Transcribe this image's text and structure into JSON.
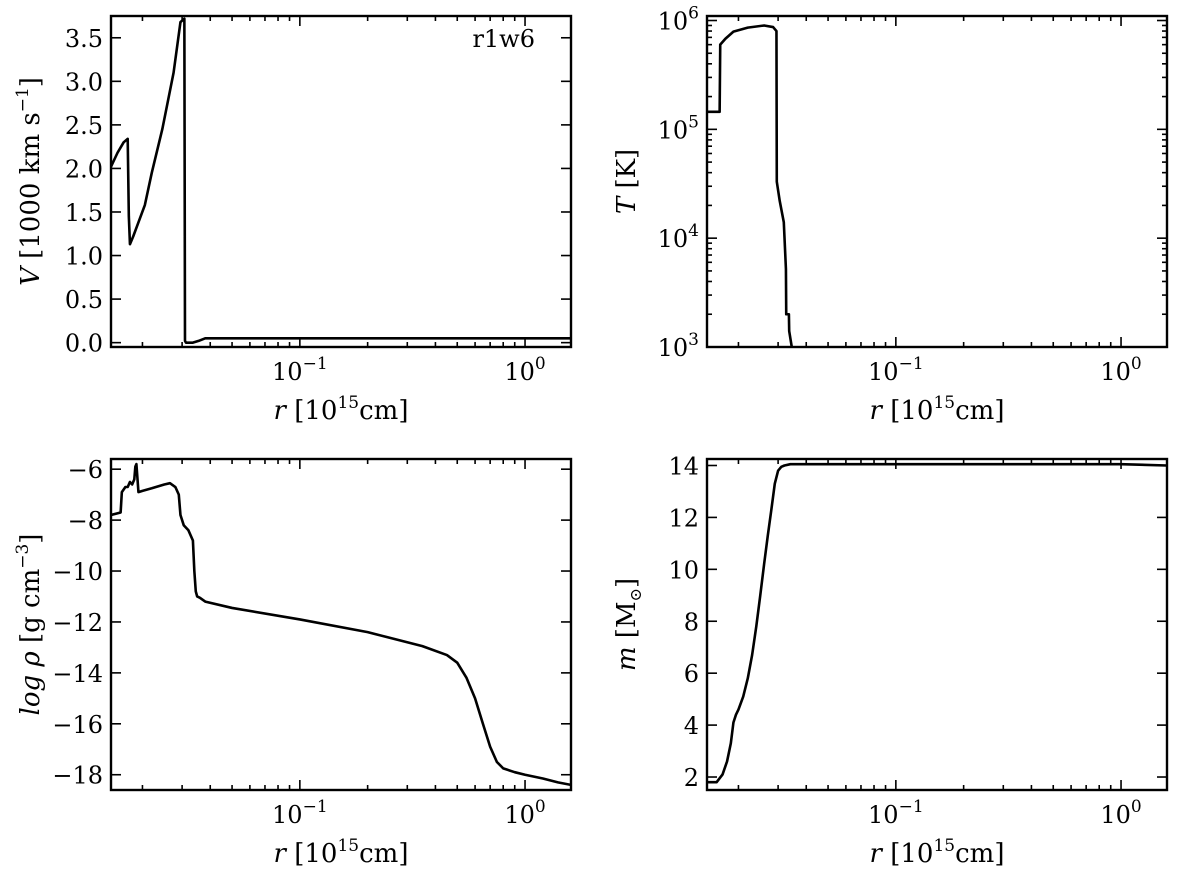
{
  "chart_data": [
    {
      "id": "velocity",
      "type": "line",
      "xscale": "log",
      "yscale": "linear",
      "xlim": [
        0.0145,
        1.6
      ],
      "ylim": [
        -0.05,
        3.75
      ],
      "xlabel": {
        "var": "r",
        "unit": "[10",
        "sup": "15",
        "unit2": "cm]"
      },
      "ylabel": {
        "var": "V",
        "unit": "[1000 km s",
        "sup": "−1",
        "unit2": "]"
      },
      "annotation": "r1w6",
      "xticks": [
        {
          "value": 0.1,
          "base": "10",
          "exp": "−1"
        },
        {
          "value": 1,
          "base": "10",
          "exp": "0"
        }
      ],
      "yticks": [
        {
          "value": 0,
          "label": "0.0"
        },
        {
          "value": 0.5,
          "label": "0.5"
        },
        {
          "value": 1,
          "label": "1.0"
        },
        {
          "value": 1.5,
          "label": "1.5"
        },
        {
          "value": 2,
          "label": "2.0"
        },
        {
          "value": 2.5,
          "label": "2.5"
        },
        {
          "value": 3,
          "label": "3.0"
        },
        {
          "value": 3.5,
          "label": "3.5"
        }
      ],
      "series": [
        {
          "x": [
            0.0145,
            0.0155,
            0.0165,
            0.0172,
            0.0174,
            0.0176,
            0.0182,
            0.019,
            0.0205,
            0.022,
            0.0245,
            0.0275,
            0.0295,
            0.0307,
            0.0309,
            0.0312,
            0.0335,
            0.0355,
            0.038,
            0.05,
            0.1,
            0.5,
            1.0,
            1.6
          ],
          "y": [
            2.02,
            2.18,
            2.3,
            2.34,
            1.45,
            1.13,
            1.22,
            1.35,
            1.58,
            1.95,
            2.45,
            3.1,
            3.68,
            3.72,
            0.02,
            0.0,
            0.0,
            0.02,
            0.05,
            0.05,
            0.05,
            0.05,
            0.05,
            0.05
          ]
        }
      ]
    },
    {
      "id": "temperature",
      "type": "line",
      "xscale": "log",
      "yscale": "log",
      "xlim": [
        0.0145,
        1.6
      ],
      "ylim": [
        1000,
        1100000
      ],
      "xlabel": {
        "var": "r",
        "unit": "[10",
        "sup": "15",
        "unit2": "cm]"
      },
      "ylabel": {
        "var": "T",
        "unit": "[K]",
        "sup": "",
        "unit2": ""
      },
      "xticks": [
        {
          "value": 0.1,
          "base": "10",
          "exp": "−1"
        },
        {
          "value": 1,
          "base": "10",
          "exp": "0"
        }
      ],
      "yticks": [
        {
          "value": 1000,
          "base": "10",
          "exp": "3"
        },
        {
          "value": 10000,
          "base": "10",
          "exp": "4"
        },
        {
          "value": 100000,
          "base": "10",
          "exp": "5"
        },
        {
          "value": 1000000,
          "base": "10",
          "exp": "6"
        }
      ],
      "series": [
        {
          "x": [
            0.0145,
            0.0165,
            0.0166,
            0.0175,
            0.019,
            0.022,
            0.026,
            0.0285,
            0.0295,
            0.0296,
            0.0305,
            0.0318,
            0.0325,
            0.0326,
            0.0335,
            0.0336,
            0.0345
          ],
          "y": [
            145000,
            145000,
            600000,
            680000,
            790000,
            860000,
            900000,
            870000,
            800000,
            33000,
            22000,
            14000,
            5200,
            2000,
            2000,
            1400,
            1000
          ]
        }
      ]
    },
    {
      "id": "density",
      "type": "line",
      "xscale": "log",
      "yscale": "linear",
      "xlim": [
        0.0145,
        1.6
      ],
      "ylim": [
        -18.6,
        -5.6
      ],
      "xlabel": {
        "var": "r",
        "unit": "[10",
        "sup": "15",
        "unit2": "cm]"
      },
      "ylabel": {
        "var": "log ρ",
        "unit": "[g cm",
        "sup": "−3",
        "unit2": "]"
      },
      "xticks": [
        {
          "value": 0.1,
          "base": "10",
          "exp": "−1"
        },
        {
          "value": 1,
          "base": "10",
          "exp": "0"
        }
      ],
      "yticks": [
        {
          "value": -6,
          "label": "−6"
        },
        {
          "value": -8,
          "label": "−8"
        },
        {
          "value": -10,
          "label": "−10"
        },
        {
          "value": -12,
          "label": "−12"
        },
        {
          "value": -14,
          "label": "−14"
        },
        {
          "value": -16,
          "label": "−16"
        },
        {
          "value": -18,
          "label": "−18"
        }
      ],
      "series": [
        {
          "x": [
            0.0145,
            0.016,
            0.0162,
            0.0168,
            0.0172,
            0.0176,
            0.018,
            0.0184,
            0.0186,
            0.0188,
            0.0192,
            0.02,
            0.022,
            0.025,
            0.0265,
            0.028,
            0.029,
            0.0295,
            0.0305,
            0.032,
            0.0335,
            0.034,
            0.0345,
            0.035,
            0.036,
            0.038,
            0.05,
            0.1,
            0.2,
            0.35,
            0.45,
            0.5,
            0.55,
            0.6,
            0.65,
            0.7,
            0.75,
            0.8,
            0.9,
            1.0,
            1.2,
            1.4,
            1.6
          ],
          "y": [
            -7.8,
            -7.7,
            -6.9,
            -6.7,
            -6.7,
            -6.5,
            -6.6,
            -6.4,
            -5.9,
            -5.8,
            -6.9,
            -6.85,
            -6.75,
            -6.6,
            -6.55,
            -6.7,
            -7.0,
            -7.8,
            -8.2,
            -8.4,
            -8.8,
            -10.0,
            -10.8,
            -11.0,
            -11.05,
            -11.2,
            -11.45,
            -11.9,
            -12.4,
            -12.95,
            -13.3,
            -13.6,
            -14.2,
            -15.0,
            -16.0,
            -16.9,
            -17.5,
            -17.75,
            -17.9,
            -18.0,
            -18.15,
            -18.3,
            -18.4
          ]
        }
      ]
    },
    {
      "id": "mass",
      "type": "line",
      "xscale": "log",
      "yscale": "linear",
      "xlim": [
        0.0145,
        1.6
      ],
      "ylim": [
        1.5,
        14.25
      ],
      "xlabel": {
        "var": "r",
        "unit": "[10",
        "sup": "15",
        "unit2": "cm]"
      },
      "ylabel": {
        "var": "m",
        "unit": "[M",
        "sup": "",
        "unit2": "]",
        "sub": "⊙"
      },
      "xticks": [
        {
          "value": 0.1,
          "base": "10",
          "exp": "−1"
        },
        {
          "value": 1,
          "base": "10",
          "exp": "0"
        }
      ],
      "yticks": [
        {
          "value": 2,
          "label": "2"
        },
        {
          "value": 4,
          "label": "4"
        },
        {
          "value": 6,
          "label": "6"
        },
        {
          "value": 8,
          "label": "8"
        },
        {
          "value": 10,
          "label": "10"
        },
        {
          "value": 12,
          "label": "12"
        },
        {
          "value": 14,
          "label": "14"
        }
      ],
      "series": [
        {
          "x": [
            0.0145,
            0.016,
            0.017,
            0.0178,
            0.0185,
            0.019,
            0.0195,
            0.02,
            0.021,
            0.022,
            0.023,
            0.024,
            0.025,
            0.026,
            0.027,
            0.028,
            0.029,
            0.03,
            0.031,
            0.032,
            0.034,
            0.038,
            0.05,
            0.1,
            0.5,
            1.0,
            1.6
          ],
          "y": [
            1.8,
            1.8,
            2.1,
            2.6,
            3.3,
            4.1,
            4.4,
            4.6,
            5.1,
            5.8,
            6.7,
            7.8,
            9.0,
            10.2,
            11.3,
            12.3,
            13.3,
            13.8,
            13.95,
            14.0,
            14.05,
            14.05,
            14.05,
            14.05,
            14.05,
            14.05,
            14.0
          ]
        }
      ]
    }
  ]
}
